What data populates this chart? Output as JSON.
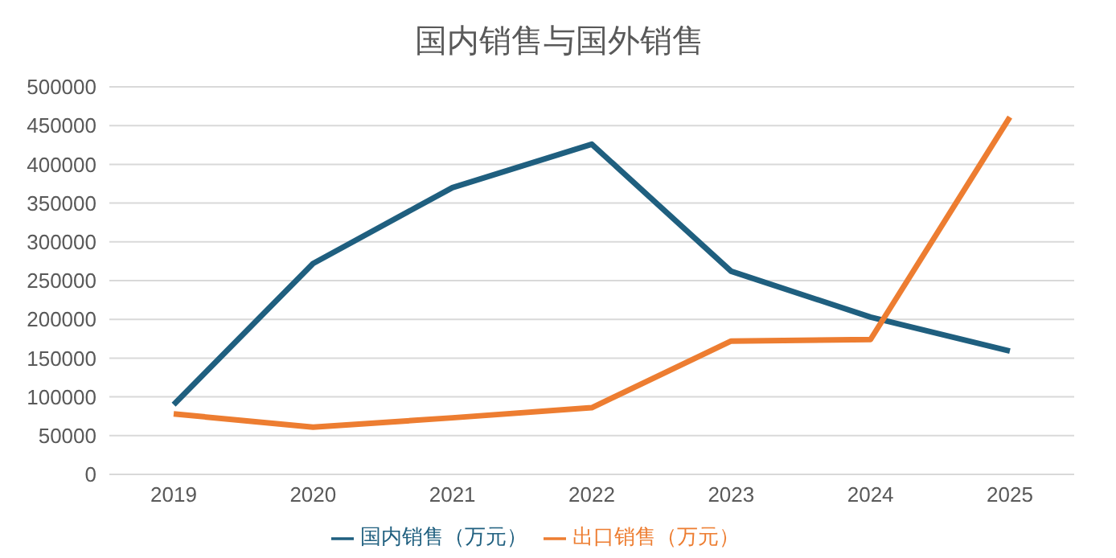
{
  "chart_data": {
    "type": "line",
    "title": "国内销售与国外销售",
    "categories": [
      "2019",
      "2020",
      "2021",
      "2022",
      "2023",
      "2024",
      "2025"
    ],
    "series": [
      {
        "name": "国内销售（万元）",
        "color": "#1f5f7f",
        "values": [
          90000,
          272000,
          370000,
          426000,
          262000,
          203000,
          159000
        ]
      },
      {
        "name": "出口销售（万元）",
        "color": "#ed7d31",
        "values": [
          78000,
          61000,
          73000,
          86000,
          172000,
          174000,
          461000
        ]
      }
    ],
    "ylim": [
      0,
      500000
    ],
    "yticks": [
      0,
      50000,
      100000,
      150000,
      200000,
      250000,
      300000,
      350000,
      400000,
      450000,
      500000
    ],
    "grid": "y",
    "legend": "bottom",
    "marker": "none",
    "line_style": "solid"
  }
}
